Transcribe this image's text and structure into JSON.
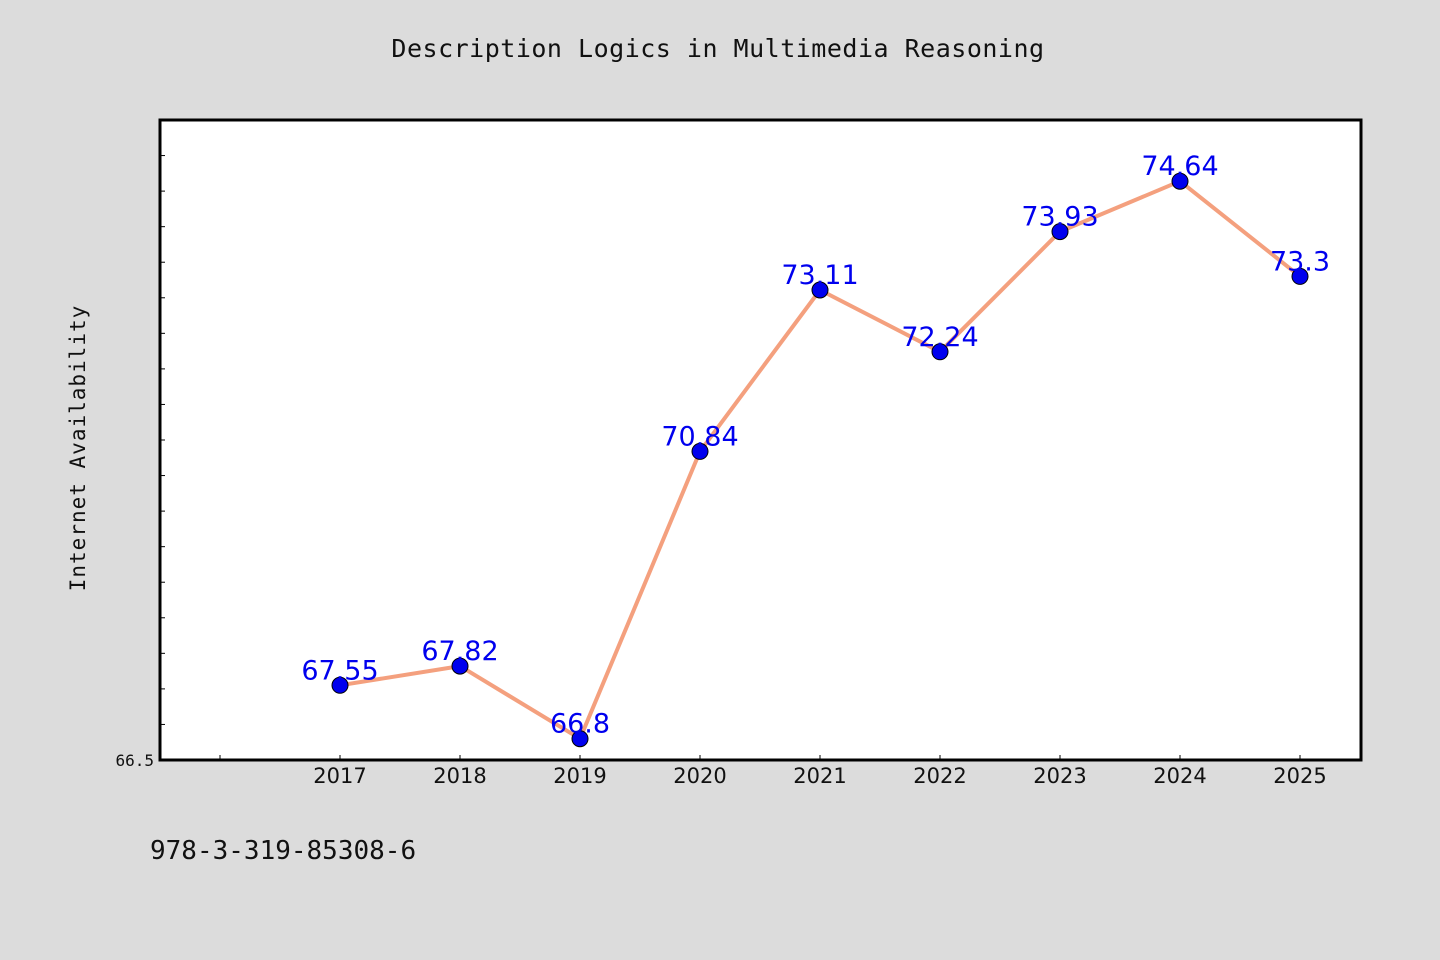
{
  "chart_data": {
    "type": "line",
    "title": "Description Logics in Multimedia Reasoning",
    "ylabel": "Internet Availability",
    "xlabel": "",
    "categories": [
      "2017",
      "2018",
      "2019",
      "2020",
      "2021",
      "2022",
      "2023",
      "2024",
      "2025"
    ],
    "values": [
      67.55,
      67.82,
      66.8,
      70.84,
      73.11,
      72.24,
      73.93,
      74.64,
      73.3
    ],
    "data_labels": [
      "67.55",
      "67.82",
      "66.8",
      "70.84",
      "73.11",
      "72.24",
      "73.93",
      "74.64",
      "73.3"
    ],
    "ylim": [
      66.5,
      75.5
    ],
    "y_tick_labels": [
      "66.5"
    ],
    "line_color": "#f4a07e",
    "marker_color": "#0000ee",
    "label_color": "#0000ee",
    "grid": false
  },
  "footer": {
    "text": "978-3-319-85308-6"
  }
}
